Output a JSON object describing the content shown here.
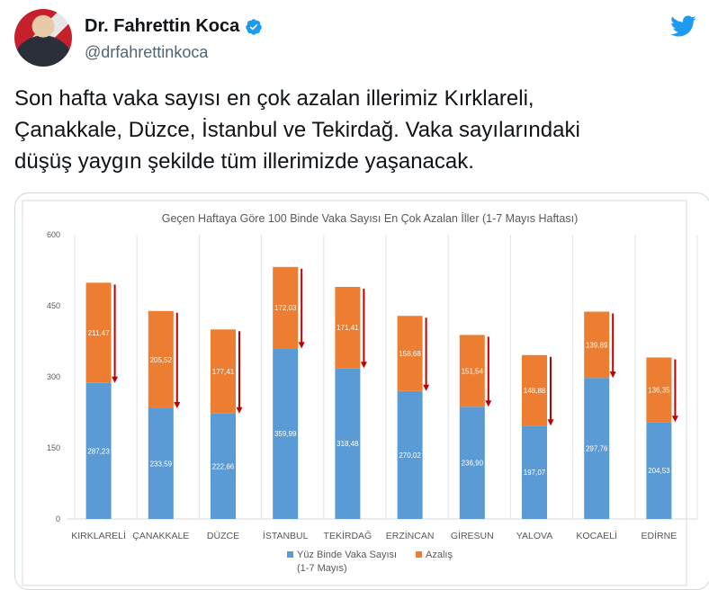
{
  "tweet": {
    "author_name": "Dr. Fahrettin Koca",
    "handle": "@drfahrettinkoca",
    "text": "Son hafta vaka sayısı en çok azalan illerimiz Kırklareli, Çanakkale, Düzce, İstanbul ve Tekirdağ. Vaka sayılarındaki düşüş yaygın şekilde tüm illerimizde yaşanacak.",
    "text_lines": [
      "Son hafta vaka sayısı en çok azalan illerimiz Kırklareli,",
      "Çanakkale, Düzce, İstanbul ve Tekirdağ. Vaka sayılarındaki",
      "düşüş yaygın şekilde tüm illerimizde yaşanacak."
    ]
  },
  "icons": {
    "verified": "verified-badge-icon",
    "brand": "twitter-bird-icon"
  },
  "colors": {
    "twitter_blue": "#1d9bf0",
    "bar_blue": "#5b9bd5",
    "bar_orange": "#ed7d31",
    "arrow_red": "#c00000"
  },
  "chart_data": {
    "type": "bar",
    "stacked": true,
    "title": "Geçen Haftaya Göre 100 Binde Vaka Sayısı En Çok Azalan İller (1-7 Mayıs Haftası)",
    "categories": [
      "KIRKLARELİ",
      "ÇANAKKALE",
      "DÜZCE",
      "İSTANBUL",
      "TEKİRDAĞ",
      "ERZİNCAN",
      "GİRESUN",
      "YALOVA",
      "KOCAELİ",
      "EDİRNE"
    ],
    "series": [
      {
        "name": "Yüz Binde Vaka Sayısı",
        "name_line2": "(1-7 Mayıs)",
        "values": [
          287.23,
          233.59,
          222.66,
          359.99,
          318.48,
          270.02,
          236.9,
          197.07,
          297.76,
          204.53
        ],
        "labels": [
          "287,23",
          "233,59",
          "222,66",
          "359,99",
          "318,48",
          "270,02",
          "236,90",
          "197,07",
          "297,76",
          "204,53"
        ]
      },
      {
        "name": "Azalış",
        "values": [
          211.47,
          205.52,
          177.41,
          172.03,
          171.41,
          158.68,
          151.54,
          148.88,
          139.89,
          136.35
        ],
        "labels": [
          "211,47",
          "205,52",
          "177,41",
          "172,03",
          "171,41",
          "158,68",
          "151,54",
          "148,88",
          "139,89",
          "136,35"
        ]
      }
    ],
    "ylim": [
      0,
      600
    ],
    "yticks": [
      0,
      150,
      300,
      450,
      600
    ],
    "grid": "vertical",
    "legend": "bottom",
    "arrows": "down, beside each bar"
  }
}
